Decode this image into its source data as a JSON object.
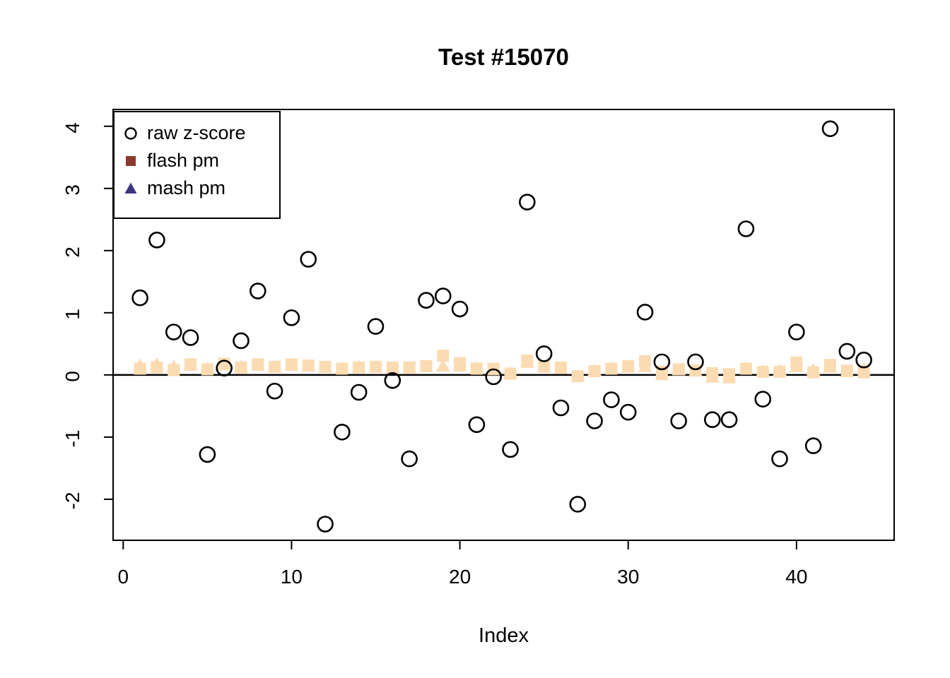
{
  "window": {
    "background": "#FFFFFF",
    "text_color": "#000000"
  },
  "chart_data": {
    "type": "scatter",
    "title": "Test #15070",
    "xlabel": "Index",
    "ylabel": "",
    "grid": false,
    "legend_position": "topleft",
    "xlim": [
      -0.6,
      45.8
    ],
    "ylim": [
      -2.66,
      4.27
    ],
    "x_ticks": [
      0,
      10,
      20,
      30,
      40
    ],
    "y_ticks": [
      -2,
      -1,
      0,
      1,
      2,
      3,
      4
    ],
    "zero_line_y": 0,
    "x": [
      1,
      2,
      3,
      4,
      5,
      6,
      7,
      8,
      9,
      10,
      11,
      12,
      13,
      14,
      15,
      16,
      17,
      18,
      19,
      20,
      21,
      22,
      23,
      24,
      25,
      26,
      27,
      28,
      29,
      30,
      31,
      32,
      33,
      34,
      35,
      36,
      37,
      38,
      39,
      40,
      41,
      42,
      43,
      44
    ],
    "series": [
      {
        "name": "raw z-score",
        "marker": "open-circle",
        "plot_color": "#000000",
        "legend_color": "#000000",
        "values": [
          1.24,
          2.17,
          0.69,
          0.6,
          -1.28,
          0.11,
          0.55,
          1.35,
          -0.26,
          0.92,
          1.86,
          -2.4,
          -0.92,
          -0.28,
          0.78,
          -0.09,
          -1.35,
          1.2,
          1.27,
          1.06,
          -0.8,
          -0.03,
          -1.2,
          2.78,
          0.34,
          -0.53,
          -2.08,
          -0.74,
          -0.4,
          -0.6,
          1.01,
          0.21,
          -0.74,
          0.21,
          -0.72,
          -0.72,
          2.35,
          -0.39,
          -1.35,
          0.69,
          -1.14,
          3.96,
          0.38,
          0.24
        ]
      },
      {
        "name": "flash pm",
        "marker": "filled-square",
        "plot_color": "#FBDBB2",
        "legend_color": "#8B3A2E",
        "values": [
          0.1,
          0.12,
          0.08,
          0.17,
          0.09,
          0.18,
          0.12,
          0.17,
          0.13,
          0.17,
          0.15,
          0.13,
          0.1,
          0.12,
          0.13,
          0.12,
          0.12,
          0.14,
          0.31,
          0.19,
          0.1,
          0.1,
          0.02,
          0.23,
          0.14,
          0.12,
          -0.02,
          0.06,
          0.1,
          0.14,
          0.22,
          0.05,
          0.09,
          0.07,
          0.03,
          0.01,
          0.1,
          0.05,
          0.05,
          0.2,
          0.04,
          0.16,
          0.07,
          0.04
        ]
      },
      {
        "name": "mash pm",
        "marker": "filled-triangle",
        "plot_color": "#FBDBB2",
        "legend_color": "#3E3680",
        "values": [
          0.15,
          0.17,
          0.13,
          0.15,
          0.1,
          0.16,
          0.13,
          0.15,
          0.14,
          0.15,
          0.14,
          0.12,
          0.11,
          0.13,
          0.12,
          0.1,
          0.11,
          0.13,
          0.14,
          0.14,
          0.11,
          0.08,
          0.03,
          0.2,
          0.12,
          0.1,
          -0.03,
          0.07,
          0.11,
          0.12,
          0.13,
          0.0,
          0.08,
          0.06,
          -0.04,
          -0.05,
          0.11,
          0.06,
          0.07,
          0.13,
          0.08,
          0.12,
          0.05,
          0.09
        ]
      }
    ]
  }
}
